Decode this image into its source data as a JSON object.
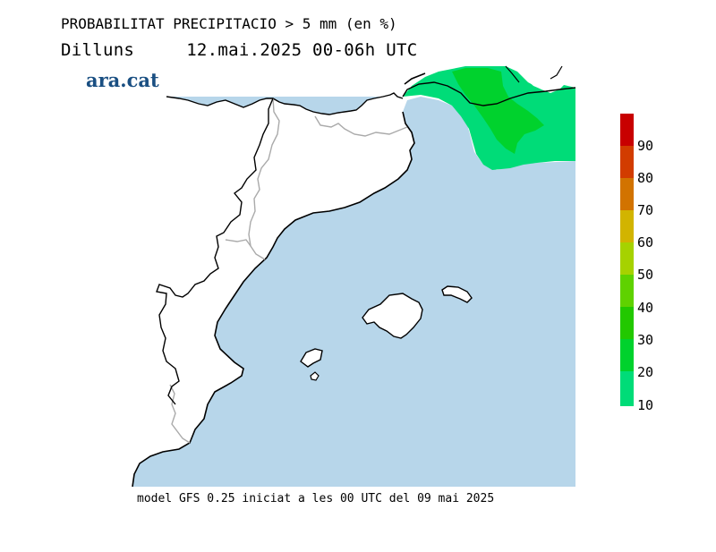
{
  "header": {
    "title": "PROBABILITAT PRECIPITACIO > 5 mm (en %)",
    "day": "Dilluns",
    "date_time": "12.mai.2025 00-06h UTC"
  },
  "logo": {
    "text": "ara.cat"
  },
  "footer": {
    "text": "model GFS 0.25 iniciat a les 00 UTC del 09 mai 2025"
  },
  "legend": {
    "labels": [
      "90",
      "80",
      "70",
      "60",
      "50",
      "40",
      "30",
      "20",
      "10"
    ],
    "colors": [
      "#c80000",
      "#d23c00",
      "#d27300",
      "#d2b400",
      "#a6d200",
      "#5fd200",
      "#22c800",
      "#00d22d",
      "#00dc78"
    ]
  },
  "colors": {
    "sea": "#b7d6ea",
    "land": "#ffffff",
    "coast": "#000000",
    "border": "#aaaaaa",
    "prob_10": "#00dc78",
    "prob_20": "#00d22d"
  }
}
